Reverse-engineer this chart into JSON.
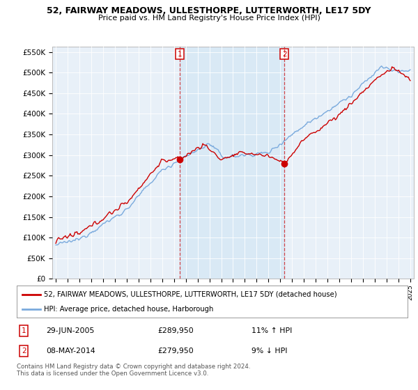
{
  "title": "52, FAIRWAY MEADOWS, ULLESTHORPE, LUTTERWORTH, LE17 5DY",
  "subtitle": "Price paid vs. HM Land Registry's House Price Index (HPI)",
  "legend_line1": "52, FAIRWAY MEADOWS, ULLESTHORPE, LUTTERWORTH, LE17 5DY (detached house)",
  "legend_line2": "HPI: Average price, detached house, Harborough",
  "transaction1_date": "29-JUN-2005",
  "transaction1_price": "£289,950",
  "transaction1_hpi": "11% ↑ HPI",
  "transaction2_date": "08-MAY-2014",
  "transaction2_price": "£279,950",
  "transaction2_hpi": "9% ↓ HPI",
  "footer": "Contains HM Land Registry data © Crown copyright and database right 2024.\nThis data is licensed under the Open Government Licence v3.0.",
  "red_color": "#cc0000",
  "blue_color": "#7aaadd",
  "shade_color": "#d6e8f5",
  "ylim": [
    0,
    562500
  ],
  "yticks": [
    0,
    50000,
    100000,
    150000,
    200000,
    250000,
    300000,
    350000,
    400000,
    450000,
    500000,
    550000
  ],
  "plot_bg": "#e8f0f8",
  "transaction1_x": 2005.5,
  "transaction2_x": 2014.35,
  "xlim_left": 1994.7,
  "xlim_right": 2025.3
}
